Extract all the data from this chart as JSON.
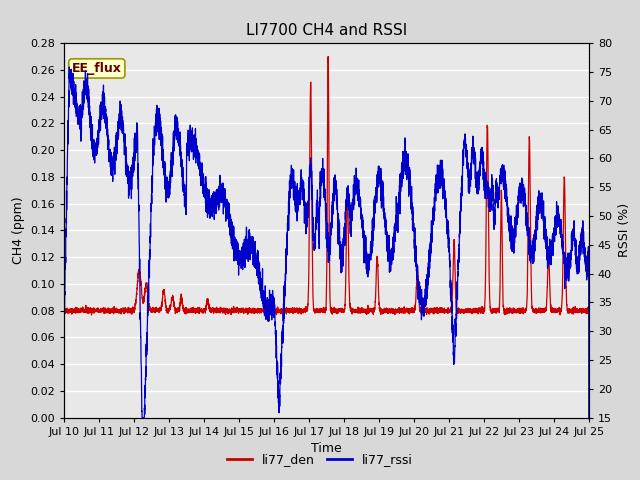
{
  "title": "LI7700 CH4 and RSSI",
  "xlabel": "Time",
  "ylabel_left": "CH4 (ppm)",
  "ylabel_right": "RSSI (%)",
  "legend_labels": [
    "li77_den",
    "li77_rssi"
  ],
  "ch4_color": "#cc0000",
  "rssi_color": "#0000cc",
  "annotation_text": "EE_flux",
  "annotation_bg": "#ffffcc",
  "annotation_border": "#999900",
  "ylim_left": [
    0.0,
    0.28
  ],
  "ylim_right": [
    15,
    80
  ],
  "yticks_left": [
    0.0,
    0.02,
    0.04,
    0.06,
    0.08,
    0.1,
    0.12,
    0.14,
    0.16,
    0.18,
    0.2,
    0.22,
    0.24,
    0.26,
    0.28
  ],
  "yticks_right": [
    15,
    20,
    25,
    30,
    35,
    40,
    45,
    50,
    55,
    60,
    65,
    70,
    75,
    80
  ],
  "bg_color": "#d8d8d8",
  "plot_bg_color": "#e8e8e8",
  "grid_color": "#ffffff",
  "title_fontsize": 11,
  "axis_label_fontsize": 9,
  "tick_fontsize": 8,
  "linewidth": 0.9
}
